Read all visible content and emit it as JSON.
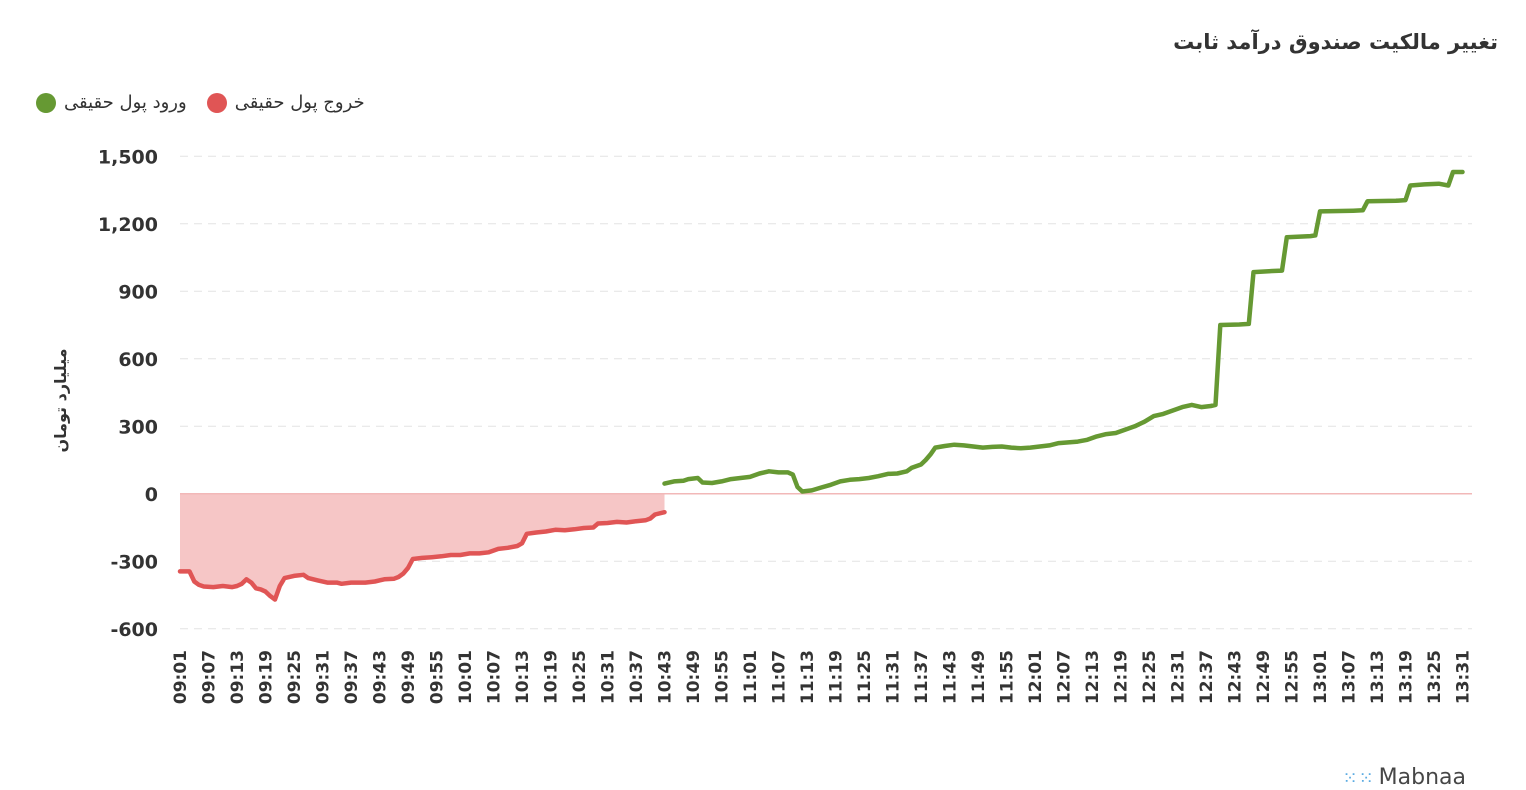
{
  "title": "تغییر مالکیت صندوق درآمد ثابت",
  "legend": {
    "inflow_label": "ورود پول حقیقی",
    "outflow_label": "خروج پول حقیقی"
  },
  "colors": {
    "inflow": "#669933",
    "outflow": "#e05555",
    "outflow_fill": "#f6c6c6",
    "grid": "#e3e3e3",
    "zero_line": "#f2b8b8"
  },
  "watermark": "Mabnaa",
  "chart_data": {
    "type": "line",
    "title": "تغییر مالکیت صندوق درآمد ثابت",
    "xlabel": "",
    "ylabel": "میلیارد تومان",
    "ylim": [
      -650,
      1550
    ],
    "yticks": [
      -600,
      -300,
      0,
      300,
      600,
      900,
      1200,
      1500
    ],
    "ytick_labels": [
      "-600",
      "-300",
      "0",
      "300",
      "600",
      "900",
      "1,200",
      "1,500"
    ],
    "grid": true,
    "legend_position": "top-left",
    "x_range": [
      "09:01",
      "13:33"
    ],
    "xtick_labels": [
      "09:01",
      "09:07",
      "09:13",
      "09:19",
      "09:25",
      "09:31",
      "09:37",
      "09:43",
      "09:49",
      "09:55",
      "10:01",
      "10:07",
      "10:13",
      "10:19",
      "10:25",
      "10:31",
      "10:37",
      "10:43",
      "10:49",
      "10:55",
      "11:01",
      "11:07",
      "11:13",
      "11:19",
      "11:25",
      "11:31",
      "11:37",
      "11:43",
      "11:49",
      "11:55",
      "12:01",
      "12:07",
      "12:13",
      "12:19",
      "12:25",
      "12:31",
      "12:37",
      "12:43",
      "12:49",
      "12:55",
      "13:01",
      "13:07",
      "13:13",
      "13:19",
      "13:25",
      "13:31"
    ],
    "series": [
      {
        "name": "خروج پول حقیقی",
        "color": "#e05555",
        "area": true,
        "points": [
          [
            "09:01",
            -345
          ],
          [
            "09:03",
            -345
          ],
          [
            "09:04",
            -390
          ],
          [
            "09:05",
            -405
          ],
          [
            "09:06",
            -412
          ],
          [
            "09:08",
            -415
          ],
          [
            "09:10",
            -410
          ],
          [
            "09:12",
            -415
          ],
          [
            "09:13",
            -410
          ],
          [
            "09:14",
            -400
          ],
          [
            "09:15",
            -380
          ],
          [
            "09:16",
            -395
          ],
          [
            "09:17",
            -420
          ],
          [
            "09:18",
            -425
          ],
          [
            "09:19",
            -435
          ],
          [
            "09:20",
            -455
          ],
          [
            "09:21",
            -470
          ],
          [
            "09:22",
            -410
          ],
          [
            "09:23",
            -375
          ],
          [
            "09:25",
            -365
          ],
          [
            "09:27",
            -360
          ],
          [
            "09:28",
            -375
          ],
          [
            "09:30",
            -385
          ],
          [
            "09:32",
            -395
          ],
          [
            "09:34",
            -395
          ],
          [
            "09:35",
            -400
          ],
          [
            "09:37",
            -395
          ],
          [
            "09:40",
            -395
          ],
          [
            "09:42",
            -390
          ],
          [
            "09:44",
            -380
          ],
          [
            "09:46",
            -378
          ],
          [
            "09:47",
            -370
          ],
          [
            "09:48",
            -355
          ],
          [
            "09:49",
            -330
          ],
          [
            "09:50",
            -290
          ],
          [
            "09:52",
            -285
          ],
          [
            "09:54",
            -282
          ],
          [
            "09:56",
            -278
          ],
          [
            "09:58",
            -272
          ],
          [
            "10:00",
            -272
          ],
          [
            "10:02",
            -265
          ],
          [
            "10:04",
            -265
          ],
          [
            "10:06",
            -260
          ],
          [
            "10:08",
            -245
          ],
          [
            "10:10",
            -240
          ],
          [
            "10:12",
            -232
          ],
          [
            "10:13",
            -220
          ],
          [
            "10:14",
            -178
          ],
          [
            "10:16",
            -172
          ],
          [
            "10:18",
            -168
          ],
          [
            "10:20",
            -160
          ],
          [
            "10:22",
            -162
          ],
          [
            "10:24",
            -158
          ],
          [
            "10:26",
            -152
          ],
          [
            "10:28",
            -150
          ],
          [
            "10:29",
            -132
          ],
          [
            "10:31",
            -130
          ],
          [
            "10:33",
            -125
          ],
          [
            "10:35",
            -128
          ],
          [
            "10:37",
            -122
          ],
          [
            "10:39",
            -118
          ],
          [
            "10:40",
            -110
          ],
          [
            "10:41",
            -92
          ],
          [
            "10:43",
            -82
          ]
        ]
      },
      {
        "name": "ورود پول حقیقی",
        "color": "#669933",
        "area": false,
        "points": [
          [
            "10:43",
            45
          ],
          [
            "10:45",
            55
          ],
          [
            "10:47",
            58
          ],
          [
            "10:48",
            65
          ],
          [
            "10:50",
            70
          ],
          [
            "10:51",
            50
          ],
          [
            "10:53",
            48
          ],
          [
            "10:55",
            55
          ],
          [
            "10:57",
            65
          ],
          [
            "10:59",
            70
          ],
          [
            "11:01",
            75
          ],
          [
            "11:03",
            90
          ],
          [
            "11:05",
            100
          ],
          [
            "11:07",
            95
          ],
          [
            "11:09",
            95
          ],
          [
            "11:10",
            85
          ],
          [
            "11:11",
            30
          ],
          [
            "11:12",
            10
          ],
          [
            "11:14",
            15
          ],
          [
            "11:16",
            28
          ],
          [
            "11:18",
            40
          ],
          [
            "11:20",
            55
          ],
          [
            "11:22",
            62
          ],
          [
            "11:24",
            65
          ],
          [
            "11:26",
            70
          ],
          [
            "11:28",
            78
          ],
          [
            "11:30",
            88
          ],
          [
            "11:32",
            90
          ],
          [
            "11:34",
            100
          ],
          [
            "11:35",
            115
          ],
          [
            "11:37",
            130
          ],
          [
            "11:38",
            150
          ],
          [
            "11:39",
            175
          ],
          [
            "11:40",
            205
          ],
          [
            "11:42",
            212
          ],
          [
            "11:44",
            218
          ],
          [
            "11:46",
            215
          ],
          [
            "11:48",
            210
          ],
          [
            "11:50",
            205
          ],
          [
            "11:52",
            208
          ],
          [
            "11:54",
            210
          ],
          [
            "11:56",
            205
          ],
          [
            "11:58",
            202
          ],
          [
            "12:00",
            205
          ],
          [
            "12:02",
            210
          ],
          [
            "12:04",
            215
          ],
          [
            "12:06",
            225
          ],
          [
            "12:08",
            228
          ],
          [
            "12:10",
            232
          ],
          [
            "12:12",
            240
          ],
          [
            "12:14",
            255
          ],
          [
            "12:16",
            265
          ],
          [
            "12:18",
            270
          ],
          [
            "12:20",
            285
          ],
          [
            "12:22",
            300
          ],
          [
            "12:24",
            320
          ],
          [
            "12:26",
            345
          ],
          [
            "12:28",
            355
          ],
          [
            "12:30",
            370
          ],
          [
            "12:32",
            385
          ],
          [
            "12:34",
            395
          ],
          [
            "12:36",
            385
          ],
          [
            "12:38",
            390
          ],
          [
            "12:39",
            395
          ],
          [
            "12:40",
            750
          ],
          [
            "12:44",
            752
          ],
          [
            "12:46",
            755
          ],
          [
            "12:47",
            985
          ],
          [
            "12:51",
            990
          ],
          [
            "12:53",
            992
          ],
          [
            "12:54",
            1140
          ],
          [
            "12:59",
            1145
          ],
          [
            "13:00",
            1148
          ],
          [
            "13:01",
            1255
          ],
          [
            "13:08",
            1258
          ],
          [
            "13:10",
            1260
          ],
          [
            "13:11",
            1300
          ],
          [
            "13:17",
            1302
          ],
          [
            "13:19",
            1305
          ],
          [
            "13:20",
            1370
          ],
          [
            "13:23",
            1375
          ],
          [
            "13:26",
            1378
          ],
          [
            "13:28",
            1370
          ],
          [
            "13:29",
            1430
          ],
          [
            "13:31",
            1430
          ]
        ]
      }
    ]
  }
}
